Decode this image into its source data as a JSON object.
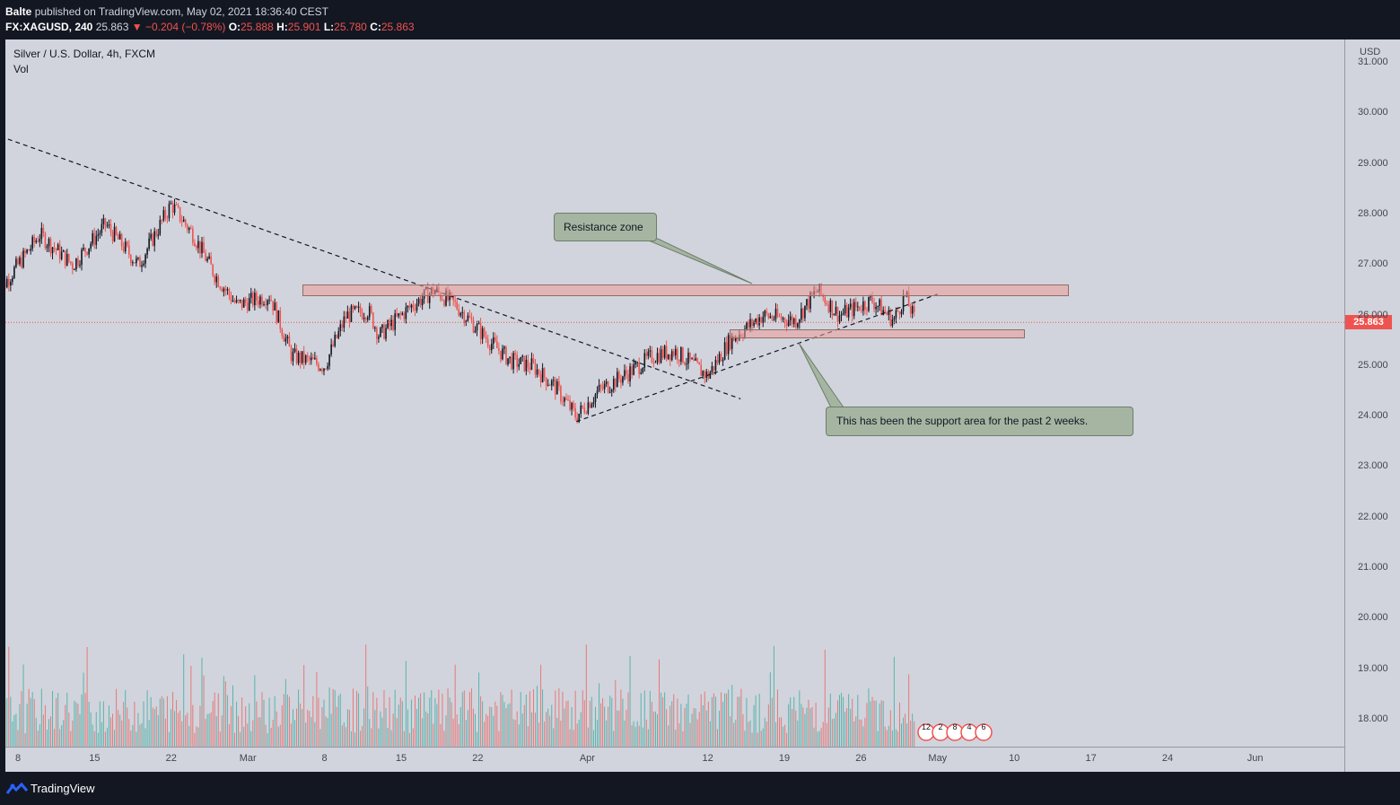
{
  "header": {
    "author": "Balte",
    "published_text": "published on TradingView.com, May 02, 2021 18:36:40 CEST",
    "symbol": "FX:XAGUSD, 240",
    "last": "25.863",
    "change": "▼ −0.204 (−0.78%)",
    "o_label": "O:",
    "o_value": "25.888",
    "h_label": "H:",
    "h_value": "25.901",
    "l_label": "L:",
    "l_value": "25.780",
    "c_label": "C:",
    "c_value": "25.863"
  },
  "legend": {
    "title": "Silver / U.S. Dollar, 4h, FXCM",
    "volume_label": "Vol"
  },
  "price_axis": {
    "currency": "USD",
    "last_price_label": "25.863"
  },
  "annotations": {
    "resistance_label": "Resistance zone",
    "support_label": "This has been the support area for the past 2 weeks."
  },
  "events_badge": {
    "labels": [
      "12",
      "2",
      "8",
      "4",
      "6"
    ]
  },
  "footer": {
    "brand": "TradingView"
  },
  "colors": {
    "background": "#d1d4dc",
    "up_candle": "#131722",
    "down_candle": "#ef5350",
    "up_volume": "#26a69a",
    "down_volume": "#ef5350",
    "zone_fill": "#ef9a9a",
    "callout_fill": "#a5b5a2"
  },
  "chart_data": {
    "type": "candlestick",
    "title": "Silver / U.S. Dollar, 4h, FXCM",
    "timeframe": "4h",
    "y_ticks": [
      "18.000",
      "19.000",
      "20.000",
      "21.000",
      "22.000",
      "23.000",
      "24.000",
      "25.000",
      "26.000",
      "27.000",
      "28.000",
      "29.000",
      "30.000",
      "31.000"
    ],
    "ylim": [
      17.5,
      31.5
    ],
    "x_ticks": [
      "8",
      "15",
      "22",
      "Mar",
      "8",
      "15",
      "22",
      "Apr",
      "12",
      "19",
      "26",
      "May",
      "10",
      "17",
      "24",
      "Jun"
    ],
    "close_path": [
      {
        "date": "2021-02-06",
        "close": 26.4
      },
      {
        "date": "2021-02-10",
        "close": 27.6
      },
      {
        "date": "2021-02-13",
        "close": 27.0
      },
      {
        "date": "2021-02-16",
        "close": 27.8
      },
      {
        "date": "2021-02-19",
        "close": 27.0
      },
      {
        "date": "2021-02-22",
        "close": 28.2
      },
      {
        "date": "2021-02-24",
        "close": 27.6
      },
      {
        "date": "2021-02-26",
        "close": 26.8
      },
      {
        "date": "2021-02-28",
        "close": 26.2
      },
      {
        "date": "2021-03-03",
        "close": 26.4
      },
      {
        "date": "2021-03-05",
        "close": 25.2
      },
      {
        "date": "2021-03-08",
        "close": 25.0
      },
      {
        "date": "2021-03-10",
        "close": 26.0
      },
      {
        "date": "2021-03-12",
        "close": 26.1
      },
      {
        "date": "2021-03-13",
        "close": 25.6
      },
      {
        "date": "2021-03-16",
        "close": 26.2
      },
      {
        "date": "2021-03-18",
        "close": 26.5
      },
      {
        "date": "2021-03-20",
        "close": 26.2
      },
      {
        "date": "2021-03-23",
        "close": 25.5
      },
      {
        "date": "2021-03-25",
        "close": 25.1
      },
      {
        "date": "2021-03-27",
        "close": 25.0
      },
      {
        "date": "2021-03-29",
        "close": 24.6
      },
      {
        "date": "2021-03-31",
        "close": 24.0
      },
      {
        "date": "2021-04-02",
        "close": 24.5
      },
      {
        "date": "2021-04-05",
        "close": 24.9
      },
      {
        "date": "2021-04-07",
        "close": 25.2
      },
      {
        "date": "2021-04-09",
        "close": 25.3
      },
      {
        "date": "2021-04-12",
        "close": 24.8
      },
      {
        "date": "2021-04-14",
        "close": 25.5
      },
      {
        "date": "2021-04-17",
        "close": 26.0
      },
      {
        "date": "2021-04-20",
        "close": 25.9
      },
      {
        "date": "2021-04-22",
        "close": 26.5
      },
      {
        "date": "2021-04-24",
        "close": 26.0
      },
      {
        "date": "2021-04-27",
        "close": 26.3
      },
      {
        "date": "2021-04-29",
        "close": 25.9
      },
      {
        "date": "2021-04-30",
        "close": 26.4
      },
      {
        "date": "2021-05-01",
        "close": 25.863
      }
    ],
    "resistance_zone": {
      "from": "2021-03-06",
      "to": "2021-05-15",
      "low": 26.38,
      "high": 26.62
    },
    "support_zone": {
      "from": "2021-04-14",
      "to": "2021-05-11",
      "low": 25.55,
      "high": 25.72
    },
    "trendlines": [
      {
        "style": "dashed",
        "from": {
          "date": "2021-02-05",
          "price": 29.65
        },
        "to": {
          "date": "2021-04-15",
          "price": 24.35
        }
      },
      {
        "style": "dashed",
        "from": {
          "date": "2021-03-31",
          "price": 23.9
        },
        "to": {
          "date": "2021-05-03",
          "price": 26.42
        }
      }
    ],
    "last_price": 25.863
  }
}
